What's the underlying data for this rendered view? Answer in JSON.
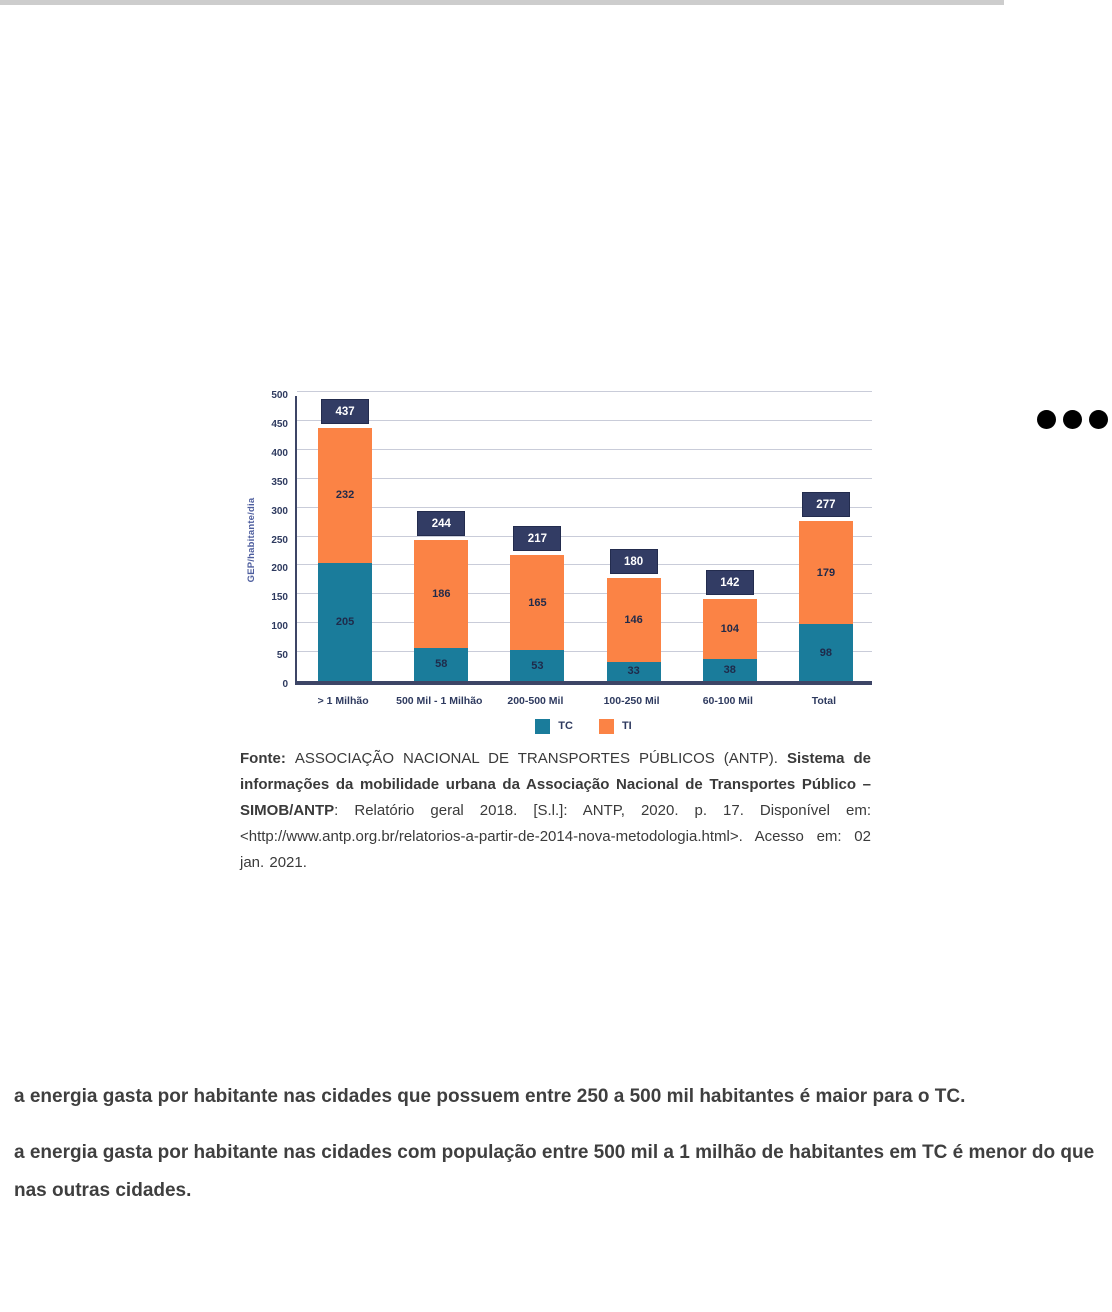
{
  "page": {
    "background": "#ffffff",
    "topbar_color": "#cdcdcd",
    "dots_color": "#000000"
  },
  "chart_data": {
    "type": "bar",
    "stacked": true,
    "categories": [
      "> 1 Milhão",
      "500 Mil - 1 Milhão",
      "200-500 Mil",
      "100-250 Mil",
      "60-100 Mil",
      "Total"
    ],
    "series": [
      {
        "name": "TC",
        "color": "#1a7c9b",
        "values": [
          205,
          58,
          53,
          33,
          38,
          98
        ]
      },
      {
        "name": "TI",
        "color": "#fb8345",
        "values": [
          232,
          186,
          165,
          146,
          104,
          179
        ]
      }
    ],
    "totals": [
      437,
      244,
      217,
      180,
      142,
      277
    ],
    "title": "",
    "xlabel": "",
    "ylabel": "GEP/habitante/dia",
    "ylim": [
      0,
      500
    ],
    "ytick_step": 50,
    "grid": true,
    "legend_position": "bottom",
    "total_label_bg": "#323c64",
    "total_label_color": "#ffffff",
    "axis_color": "#3d4566",
    "grid_color": "#c9ccd9"
  },
  "caption": {
    "parts": [
      {
        "text": "Fonte: ",
        "bold": true
      },
      {
        "text": "ASSOCIAÇÃO NACIONAL DE TRANSPORTES PÚBLICOS (ANTP). ",
        "bold": false
      },
      {
        "text": "Sistema de informações da mobilidade urbana da Associação Nacional de Transportes Público – SIMOB/ANTP",
        "bold": true
      },
      {
        "text": ": Relatório geral 2018. [S.l.]: ANTP, 2020. p. 17. Disponível em: <http://www.antp.org.br/relatorios-a-partir-de-2014-nova-metodologia.html>. Acesso em: 02 jan. 2021.",
        "bold": false
      }
    ]
  },
  "options": [
    {
      "text": "a energia gasta por habitante nas cidades que possuem entre 250 a 500 mil habitantes é maior para o TC."
    },
    {
      "text": "a energia gasta por habitante nas cidades com população entre 500 mil a 1 milhão de habitantes em TC é menor do que nas outras cidades."
    }
  ]
}
